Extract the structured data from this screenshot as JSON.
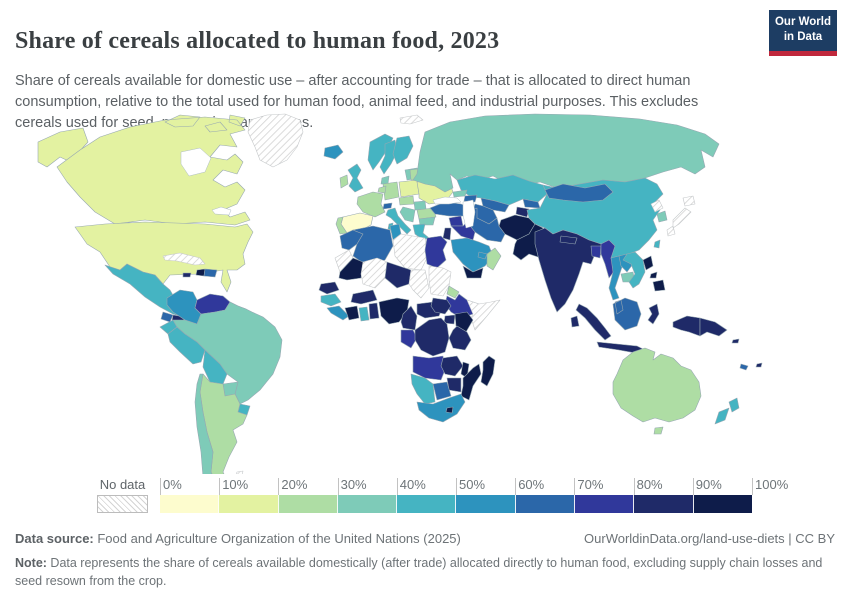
{
  "header": {
    "title": "Share of cereals allocated to human food, 2023",
    "subtitle": "Share of cereals available for domestic use – after accounting for trade – that is allocated to direct human consumption, relative to the total used for human food, animal feed, and industrial purposes. This excludes cereals used for seed, processing, and losses."
  },
  "logo": {
    "line1": "Our World",
    "line2": "in Data"
  },
  "legend": {
    "no_data_label": "No data",
    "ticks": [
      "0%",
      "10%",
      "20%",
      "30%",
      "40%",
      "50%",
      "60%",
      "70%",
      "80%",
      "90%",
      "100%"
    ],
    "colors": [
      "#fdfcce",
      "#e3f2a1",
      "#aedda4",
      "#7ecbb8",
      "#45b4c2",
      "#2d93be",
      "#2b67a9",
      "#30389b",
      "#1f2a68",
      "#0e1c4a"
    ]
  },
  "footer": {
    "source_label": "Data source:",
    "source_text": " Food and Agriculture Organization of the United Nations (2025)",
    "link_text": "OurWorldinData.org/land-use-diets | CC BY",
    "note_label": "Note:",
    "note_text": " Data represents the share of cereals available domestically (after trade) allocated directly to human food, excluding supply chain losses and seed resown from the crop."
  },
  "chart_data": {
    "type": "choropleth-map",
    "title": "Share of cereals allocated to human food",
    "year": 2023,
    "unit": "% of cereals allocated to human food",
    "legend_buckets": [
      {
        "range": "0-10%",
        "color": "#fdfcce"
      },
      {
        "range": "10-20%",
        "color": "#e3f2a1"
      },
      {
        "range": "20-30%",
        "color": "#aedda4"
      },
      {
        "range": "30-40%",
        "color": "#7ecbb8"
      },
      {
        "range": "40-50%",
        "color": "#45b4c2"
      },
      {
        "range": "50-60%",
        "color": "#2d93be"
      },
      {
        "range": "60-70%",
        "color": "#2b67a9"
      },
      {
        "range": "70-80%",
        "color": "#30389b"
      },
      {
        "range": "80-90%",
        "color": "#1f2a68"
      },
      {
        "range": "90-100%",
        "color": "#0e1c4a"
      }
    ],
    "no_data": {
      "label": "No data",
      "color": "hatch"
    },
    "countries": {
      "canada": {
        "name": "Canada",
        "value": "10-20%",
        "color": "#e3f2a1"
      },
      "united_states": {
        "name": "United States",
        "value": "10-20%",
        "color": "#e3f2a1"
      },
      "greenland": {
        "name": "Greenland",
        "value": "No data",
        "color": "hatch"
      },
      "mexico": {
        "name": "Mexico",
        "value": "40-50%",
        "color": "#45b4c2"
      },
      "guatemala": {
        "name": "Guatemala",
        "value": "60-70%",
        "color": "#2b67a9"
      },
      "honduras": {
        "name": "Honduras",
        "value": "80-90%",
        "color": "#1f2a68"
      },
      "nicaragua": {
        "name": "Nicaragua",
        "value": "50-60%",
        "color": "#2d93be"
      },
      "costa_rica": {
        "name": "Costa Rica",
        "value": "60-70%",
        "color": "#2b67a9"
      },
      "panama": {
        "name": "Panama",
        "value": "50-60%",
        "color": "#2d93be"
      },
      "cuba": {
        "name": "Cuba",
        "value": "No data",
        "color": "hatch"
      },
      "haiti": {
        "name": "Haiti",
        "value": "90-100%",
        "color": "#0e1c4a"
      },
      "dominican_republic": {
        "name": "Dominican Republic",
        "value": "60-70%",
        "color": "#2b67a9"
      },
      "jamaica": {
        "name": "Jamaica",
        "value": "80-90%",
        "color": "#1f2a68"
      },
      "colombia": {
        "name": "Colombia",
        "value": "50-60%",
        "color": "#2d93be"
      },
      "venezuela": {
        "name": "Venezuela",
        "value": "70-80%",
        "color": "#30389b"
      },
      "guyana": {
        "name": "Guyana",
        "value": "30-40%",
        "color": "#7ecbb8"
      },
      "suriname": {
        "name": "Suriname",
        "value": "40-50%",
        "color": "#45b4c2"
      },
      "ecuador": {
        "name": "Ecuador",
        "value": "40-50%",
        "color": "#45b4c2"
      },
      "peru": {
        "name": "Peru",
        "value": "40-50%",
        "color": "#45b4c2"
      },
      "brazil": {
        "name": "Brazil",
        "value": "30-40%",
        "color": "#7ecbb8"
      },
      "bolivia": {
        "name": "Bolivia",
        "value": "40-50%",
        "color": "#45b4c2"
      },
      "paraguay": {
        "name": "Paraguay",
        "value": "30-40%",
        "color": "#7ecbb8"
      },
      "chile": {
        "name": "Chile",
        "value": "30-40%",
        "color": "#7ecbb8"
      },
      "argentina": {
        "name": "Argentina",
        "value": "20-30%",
        "color": "#aedda4"
      },
      "uruguay": {
        "name": "Uruguay",
        "value": "40-50%",
        "color": "#45b4c2"
      },
      "falkland_islands": {
        "name": "Falkland Islands",
        "value": "No data",
        "color": "hatch"
      },
      "iceland": {
        "name": "Iceland",
        "value": "50-60%",
        "color": "#2d93be"
      },
      "norway": {
        "name": "Norway",
        "value": "40-50%",
        "color": "#45b4c2"
      },
      "sweden": {
        "name": "Sweden",
        "value": "40-50%",
        "color": "#45b4c2"
      },
      "finland": {
        "name": "Finland",
        "value": "40-50%",
        "color": "#45b4c2"
      },
      "denmark": {
        "name": "Denmark",
        "value": "30-40%",
        "color": "#7ecbb8"
      },
      "baltic_states": {
        "name": "Baltic states",
        "value": "30-40%",
        "color": "#7ecbb8"
      },
      "united_kingdom": {
        "name": "United Kingdom",
        "value": "40-50%",
        "color": "#45b4c2"
      },
      "ireland": {
        "name": "Ireland",
        "value": "20-30%",
        "color": "#aedda4"
      },
      "germany": {
        "name": "Germany",
        "value": "20-30%",
        "color": "#aedda4"
      },
      "poland": {
        "name": "Poland",
        "value": "10-20%",
        "color": "#e3f2a1"
      },
      "belarus": {
        "name": "Belarus",
        "value": "20-30%",
        "color": "#aedda4"
      },
      "ukraine": {
        "name": "Ukraine",
        "value": "10-20%",
        "color": "#e3f2a1"
      },
      "benelux": {
        "name": "Benelux",
        "value": "20-30%",
        "color": "#aedda4"
      },
      "france": {
        "name": "France",
        "value": "20-30%",
        "color": "#aedda4"
      },
      "spain": {
        "name": "Spain",
        "value": "0-10%",
        "color": "#fdfcce"
      },
      "portugal": {
        "name": "Portugal",
        "value": "20-30%",
        "color": "#aedda4"
      },
      "switzerland": {
        "name": "Switzerland",
        "value": "60-70%",
        "color": "#2b67a9"
      },
      "czechia_austria": {
        "name": "Czechia & Austria",
        "value": "20-30%",
        "color": "#aedda4"
      },
      "hungary_slovakia": {
        "name": "Hungary & Slovakia",
        "value": "30-40%",
        "color": "#7ecbb8"
      },
      "romania": {
        "name": "Romania",
        "value": "20-30%",
        "color": "#aedda4"
      },
      "bulgaria": {
        "name": "Bulgaria",
        "value": "30-40%",
        "color": "#7ecbb8"
      },
      "balkans": {
        "name": "Western Balkans",
        "value": "30-40%",
        "color": "#7ecbb8"
      },
      "italy": {
        "name": "Italy",
        "value": "40-50%",
        "color": "#45b4c2"
      },
      "greece": {
        "name": "Greece",
        "value": "40-50%",
        "color": "#45b4c2"
      },
      "svalbard": {
        "name": "Svalbard",
        "value": "No data",
        "color": "hatch"
      },
      "russia": {
        "name": "Russia",
        "value": "30-40%",
        "color": "#7ecbb8"
      },
      "georgia": {
        "name": "Georgia",
        "value": "30-40%",
        "color": "#7ecbb8"
      },
      "azerbaijan": {
        "name": "Azerbaijan",
        "value": "60-70%",
        "color": "#2b67a9"
      },
      "kazakhstan": {
        "name": "Kazakhstan",
        "value": "40-50%",
        "color": "#45b4c2"
      },
      "uzbekistan": {
        "name": "Uzbekistan",
        "value": "60-70%",
        "color": "#2b67a9"
      },
      "turkmenistan": {
        "name": "Turkmenistan",
        "value": "60-70%",
        "color": "#2b67a9"
      },
      "kyrgyzstan": {
        "name": "Kyrgyzstan",
        "value": "60-70%",
        "color": "#2b67a9"
      },
      "tajikistan": {
        "name": "Tajikistan",
        "value": "80-90%",
        "color": "#1f2a68"
      },
      "turkey": {
        "name": "Turkey",
        "value": "60-70%",
        "color": "#2b67a9"
      },
      "syria": {
        "name": "Syria",
        "value": "70-80%",
        "color": "#30389b"
      },
      "iraq": {
        "name": "Iraq",
        "value": "70-80%",
        "color": "#30389b"
      },
      "jordan": {
        "name": "Jordan",
        "value": "80-90%",
        "color": "#1f2a68"
      },
      "iran": {
        "name": "Iran",
        "value": "60-70%",
        "color": "#2b67a9"
      },
      "saudi_arabia": {
        "name": "Saudi Arabia",
        "value": "50-60%",
        "color": "#2d93be"
      },
      "yemen": {
        "name": "Yemen",
        "value": "90-100%",
        "color": "#0e1c4a"
      },
      "oman": {
        "name": "Oman",
        "value": "20-30%",
        "color": "#aedda4"
      },
      "united_arab_emirates": {
        "name": "United Arab Emirates",
        "value": "50-60%",
        "color": "#2d93be"
      },
      "afghanistan": {
        "name": "Afghanistan",
        "value": "90-100%",
        "color": "#0e1c4a"
      },
      "pakistan": {
        "name": "Pakistan",
        "value": "90-100%",
        "color": "#0e1c4a"
      },
      "india": {
        "name": "India",
        "value": "80-90%",
        "color": "#1f2a68"
      },
      "nepal": {
        "name": "Nepal",
        "value": "80-90%",
        "color": "#1f2a68"
      },
      "bangladesh": {
        "name": "Bangladesh",
        "value": "70-80%",
        "color": "#30389b"
      },
      "sri_lanka": {
        "name": "Sri Lanka",
        "value": "80-90%",
        "color": "#1f2a68"
      },
      "myanmar": {
        "name": "Myanmar",
        "value": "70-80%",
        "color": "#30389b"
      },
      "thailand": {
        "name": "Thailand",
        "value": "50-60%",
        "color": "#2d93be"
      },
      "laos": {
        "name": "Laos",
        "value": "50-60%",
        "color": "#2d93be"
      },
      "cambodia": {
        "name": "Cambodia",
        "value": "30-40%",
        "color": "#7ecbb8"
      },
      "vietnam": {
        "name": "Vietnam",
        "value": "40-50%",
        "color": "#45b4c2"
      },
      "china": {
        "name": "China",
        "value": "40-50%",
        "color": "#45b4c2"
      },
      "mongolia": {
        "name": "Mongolia",
        "value": "60-70%",
        "color": "#2b67a9"
      },
      "north_korea": {
        "name": "North Korea",
        "value": "No data",
        "color": "hatch"
      },
      "south_korea": {
        "name": "South Korea",
        "value": "30-40%",
        "color": "#7ecbb8"
      },
      "japan": {
        "name": "Japan",
        "value": "No data",
        "color": "hatch"
      },
      "taiwan": {
        "name": "Taiwan",
        "value": "40-50%",
        "color": "#45b4c2"
      },
      "philippines": {
        "name": "Philippines",
        "value": "90-100%",
        "color": "#0e1c4a"
      },
      "malaysia": {
        "name": "Malaysia",
        "value": "60-70%",
        "color": "#2b67a9"
      },
      "indonesia": {
        "name": "Indonesia",
        "value": "80-90%",
        "color": "#1f2a68"
      },
      "papua_new_guinea": {
        "name": "Papua New Guinea",
        "value": "80-90%",
        "color": "#1f2a68"
      },
      "solomon_islands": {
        "name": "Solomon Islands",
        "value": "80-90%",
        "color": "#1f2a68"
      },
      "fiji": {
        "name": "Fiji",
        "value": "80-90%",
        "color": "#1f2a68"
      },
      "new_caledonia": {
        "name": "New Caledonia",
        "value": "60-70%",
        "color": "#2b67a9"
      },
      "australia": {
        "name": "Australia",
        "value": "20-30%",
        "color": "#aedda4"
      },
      "new_zealand": {
        "name": "New Zealand",
        "value": "40-50%",
        "color": "#45b4c2"
      },
      "morocco": {
        "name": "Morocco",
        "value": "60-70%",
        "color": "#2b67a9"
      },
      "western_sahara": {
        "name": "Western Sahara",
        "value": "No data",
        "color": "hatch"
      },
      "algeria": {
        "name": "Algeria",
        "value": "60-70%",
        "color": "#2b67a9"
      },
      "tunisia": {
        "name": "Tunisia",
        "value": "50-60%",
        "color": "#2d93be"
      },
      "libya": {
        "name": "Libya",
        "value": "No data",
        "color": "hatch"
      },
      "egypt": {
        "name": "Egypt",
        "value": "70-80%",
        "color": "#30389b"
      },
      "mauritania": {
        "name": "Mauritania",
        "value": "90-100%",
        "color": "#0e1c4a"
      },
      "mali": {
        "name": "Mali",
        "value": "No data",
        "color": "hatch"
      },
      "niger": {
        "name": "Niger",
        "value": "80-90%",
        "color": "#1f2a68"
      },
      "chad": {
        "name": "Chad",
        "value": "No data",
        "color": "hatch"
      },
      "sudan": {
        "name": "Sudan",
        "value": "No data",
        "color": "hatch"
      },
      "eritrea": {
        "name": "Eritrea",
        "value": "20-30%",
        "color": "#aedda4"
      },
      "ethiopia": {
        "name": "Ethiopia",
        "value": "70-80%",
        "color": "#30389b"
      },
      "somalia": {
        "name": "Somalia",
        "value": "No data",
        "color": "hatch"
      },
      "senegal": {
        "name": "Senegal",
        "value": "80-90%",
        "color": "#1f2a68"
      },
      "guinea": {
        "name": "Guinea",
        "value": "40-50%",
        "color": "#45b4c2"
      },
      "sierra_leone_liberia": {
        "name": "Sierra Leone & Liberia",
        "value": "50-60%",
        "color": "#2d93be"
      },
      "ivory_coast": {
        "name": "Cote d'Ivoire",
        "value": "90-100%",
        "color": "#0e1c4a"
      },
      "ghana": {
        "name": "Ghana",
        "value": "40-50%",
        "color": "#45b4c2"
      },
      "togo_benin": {
        "name": "Togo & Benin",
        "value": "80-90%",
        "color": "#1f2a68"
      },
      "burkina_faso": {
        "name": "Burkina Faso",
        "value": "80-90%",
        "color": "#1f2a68"
      },
      "nigeria": {
        "name": "Nigeria",
        "value": "90-100%",
        "color": "#0e1c4a"
      },
      "cameroon": {
        "name": "Cameroon",
        "value": "80-90%",
        "color": "#1f2a68"
      },
      "central_african_republic": {
        "name": "Central African Republic",
        "value": "80-90%",
        "color": "#1f2a68"
      },
      "south_sudan": {
        "name": "South Sudan",
        "value": "80-90%",
        "color": "#1f2a68"
      },
      "uganda": {
        "name": "Uganda",
        "value": "80-90%",
        "color": "#1f2a68"
      },
      "kenya": {
        "name": "Kenya",
        "value": "90-100%",
        "color": "#0e1c4a"
      },
      "gabon_congo": {
        "name": "Gabon & Congo",
        "value": "70-80%",
        "color": "#30389b"
      },
      "dr_congo": {
        "name": "Democratic Republic of Congo",
        "value": "80-90%",
        "color": "#1f2a68"
      },
      "tanzania": {
        "name": "Tanzania",
        "value": "80-90%",
        "color": "#1f2a68"
      },
      "angola": {
        "name": "Angola",
        "value": "70-80%",
        "color": "#30389b"
      },
      "zambia": {
        "name": "Zambia",
        "value": "80-90%",
        "color": "#1f2a68"
      },
      "malawi": {
        "name": "Malawi",
        "value": "90-100%",
        "color": "#0e1c4a"
      },
      "mozambique": {
        "name": "Mozambique",
        "value": "90-100%",
        "color": "#0e1c4a"
      },
      "zimbabwe": {
        "name": "Zimbabwe",
        "value": "80-90%",
        "color": "#1f2a68"
      },
      "botswana": {
        "name": "Botswana",
        "value": "60-70%",
        "color": "#2b67a9"
      },
      "namibia": {
        "name": "Namibia",
        "value": "40-50%",
        "color": "#45b4c2"
      },
      "south_africa": {
        "name": "South Africa",
        "value": "50-60%",
        "color": "#2d93be"
      },
      "lesotho": {
        "name": "Lesotho",
        "value": "90-100%",
        "color": "#0e1c4a"
      },
      "madagascar": {
        "name": "Madagascar",
        "value": "90-100%",
        "color": "#0e1c4a"
      }
    }
  }
}
